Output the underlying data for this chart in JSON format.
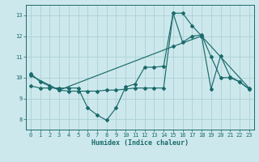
{
  "bg_color": "#cde8ec",
  "grid_color": "#aed4d8",
  "line_color": "#1a6b6b",
  "xlabel": "Humidex (Indice chaleur)",
  "xlim": [
    -0.5,
    23.5
  ],
  "ylim": [
    7.5,
    13.5
  ],
  "xticks": [
    0,
    1,
    2,
    3,
    4,
    5,
    6,
    7,
    8,
    9,
    10,
    11,
    12,
    13,
    14,
    15,
    16,
    17,
    18,
    19,
    20,
    21,
    22,
    23
  ],
  "yticks": [
    8,
    9,
    10,
    11,
    12,
    13
  ],
  "line1_x": [
    0,
    1,
    2,
    3,
    4,
    5,
    6,
    7,
    8,
    9,
    10,
    11,
    12,
    13,
    14,
    15,
    16,
    17,
    18,
    19,
    20,
    21,
    22,
    23
  ],
  "line1_y": [
    10.2,
    9.8,
    9.6,
    9.4,
    9.35,
    9.35,
    9.35,
    9.35,
    9.4,
    9.4,
    9.45,
    9.5,
    9.5,
    9.5,
    9.5,
    13.1,
    13.1,
    12.5,
    12.0,
    9.45,
    11.05,
    10.05,
    9.8,
    9.45
  ],
  "line2_x": [
    0,
    1,
    2,
    3,
    4,
    5,
    6,
    7,
    8,
    9,
    10,
    11,
    12,
    13,
    14,
    15,
    16,
    17,
    18,
    19,
    20,
    21,
    22,
    23
  ],
  "line2_y": [
    9.6,
    9.5,
    9.5,
    9.5,
    9.5,
    9.5,
    8.55,
    8.2,
    7.95,
    8.55,
    9.55,
    9.7,
    10.5,
    10.5,
    10.55,
    13.1,
    11.7,
    12.0,
    12.05,
    11.0,
    10.0,
    10.0,
    9.8,
    9.45
  ],
  "line3_x": [
    0,
    3,
    15,
    18,
    23
  ],
  "line3_y": [
    10.1,
    9.4,
    11.5,
    12.0,
    9.5
  ]
}
